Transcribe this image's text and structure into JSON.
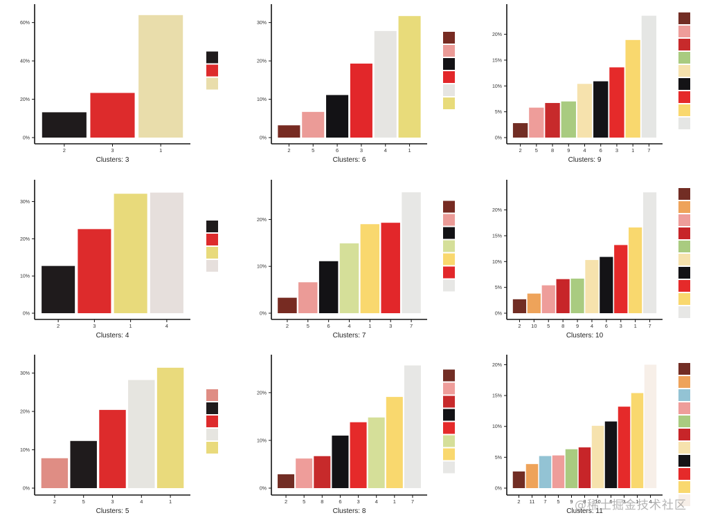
{
  "watermark": "@稀土掘金技术社区",
  "colors": {
    "dark_brown": "#722d24",
    "orange": "#eea35a",
    "light_blue": "#93c3d4",
    "pink": "#ee9d9a",
    "green": "#a9cb80",
    "crimson": "#c72529",
    "wheat": "#f6e2ad",
    "black": "#141316",
    "red": "#e52a2a",
    "yellow": "#f9d86e",
    "light_grey": "#e7e7e5",
    "khaki": "#e9ddab",
    "mustard": "#e9da7c",
    "salmon": "#df8d84",
    "lime_yellow": "#d5df99",
    "warm_grey": "#e6dfdc",
    "offwhite": "#f7efe8"
  },
  "chart_data": [
    {
      "type": "bar",
      "title": "Clusters: 3",
      "categories": [
        "2",
        "3",
        "1"
      ],
      "values": [
        13.2,
        23.3,
        63.9
      ],
      "colors": [
        "#1f1b1c",
        "#dd2b2c",
        "#e9ddab"
      ],
      "yticks": [
        0,
        20,
        40,
        60
      ],
      "ytick_labels": [
        "0%",
        "20%",
        "40%",
        "60%"
      ],
      "ylim": [
        0,
        66
      ],
      "ylabel": "",
      "legend": "right"
    },
    {
      "type": "bar",
      "title": "Clusters: 6",
      "categories": [
        "2",
        "5",
        "6",
        "3",
        "4",
        "1"
      ],
      "values": [
        3.2,
        6.7,
        11.1,
        19.3,
        27.8,
        31.7
      ],
      "colors": [
        "#772b22",
        "#eb9b97",
        "#131215",
        "#e2272a",
        "#e6e5e2",
        "#e8db7a"
      ],
      "yticks": [
        0,
        10,
        20,
        30
      ],
      "ytick_labels": [
        "0%",
        "10%",
        "20%",
        "30%"
      ],
      "ylim": [
        0,
        33
      ],
      "ylabel": "",
      "legend": "right"
    },
    {
      "type": "bar",
      "title": "Clusters: 9",
      "categories": [
        "2",
        "5",
        "8",
        "9",
        "4",
        "6",
        "3",
        "1",
        "7"
      ],
      "values": [
        2.8,
        5.8,
        6.7,
        7.0,
        10.4,
        10.9,
        13.6,
        18.9,
        23.6
      ],
      "colors": [
        "#722d24",
        "#ee9d9a",
        "#c72a2b",
        "#a9cb80",
        "#f6e2ad",
        "#141316",
        "#e52a2a",
        "#f9d86e",
        "#e5e6e4"
      ],
      "yticks": [
        0,
        5,
        10,
        15,
        20
      ],
      "ytick_labels": [
        "0%",
        "5%",
        "10%",
        "15%",
        "20%"
      ],
      "ylim": [
        0,
        24.5
      ],
      "ylabel": "",
      "legend": "right"
    },
    {
      "type": "bar",
      "title": "Clusters: 4",
      "categories": [
        "2",
        "3",
        "1",
        "4"
      ],
      "values": [
        12.7,
        22.6,
        32.1,
        32.4
      ],
      "colors": [
        "#1f1b1c",
        "#dd2b2c",
        "#e8da7b",
        "#e6dfdc"
      ],
      "yticks": [
        0,
        10,
        20,
        30
      ],
      "ytick_labels": [
        "0%",
        "10%",
        "20%",
        "30%"
      ],
      "ylim": [
        0,
        34
      ],
      "ylabel": "",
      "legend": "right"
    },
    {
      "type": "bar",
      "title": "Clusters: 7",
      "categories": [
        "2",
        "5",
        "6",
        "4",
        "1",
        "3",
        "7"
      ],
      "values": [
        3.3,
        6.6,
        11.1,
        14.9,
        19.0,
        19.3,
        25.8
      ],
      "colors": [
        "#772b22",
        "#eb9b97",
        "#131215",
        "#d5df99",
        "#f9d86e",
        "#e2272a",
        "#e7e7e5"
      ],
      "yticks": [
        0,
        10,
        20
      ],
      "ytick_labels": [
        "0%",
        "10%",
        "20%"
      ],
      "ylim": [
        0,
        27
      ],
      "ylabel": "",
      "legend": "right"
    },
    {
      "type": "bar",
      "title": "Clusters: 10",
      "categories": [
        "2",
        "10",
        "5",
        "8",
        "9",
        "4",
        "6",
        "3",
        "1",
        "7"
      ],
      "values": [
        2.7,
        3.8,
        5.4,
        6.6,
        6.7,
        10.3,
        10.9,
        13.2,
        16.6,
        23.4
      ],
      "colors": [
        "#722d24",
        "#eea35a",
        "#ee9d9a",
        "#c72529",
        "#a9cb80",
        "#f6e2ad",
        "#141316",
        "#e52a2a",
        "#f9d86e",
        "#e7e7e5"
      ],
      "yticks": [
        0,
        5,
        10,
        15,
        20
      ],
      "ytick_labels": [
        "0%",
        "5%",
        "10%",
        "15%",
        "20%"
      ],
      "ylim": [
        0,
        24.5
      ],
      "ylabel": "",
      "legend": "right"
    },
    {
      "type": "bar",
      "title": "Clusters: 5",
      "categories": [
        "2",
        "5",
        "3",
        "4",
        "1"
      ],
      "values": [
        7.8,
        12.3,
        20.4,
        28.2,
        31.4
      ],
      "colors": [
        "#df8d84",
        "#1f1b1c",
        "#dd2b2c",
        "#e6e5e0",
        "#e9da7c"
      ],
      "yticks": [
        0,
        10,
        20,
        30
      ],
      "ytick_labels": [
        "0%",
        "10%",
        "20%",
        "30%"
      ],
      "ylim": [
        0,
        33
      ],
      "ylabel": "",
      "legend": "right"
    },
    {
      "type": "bar",
      "title": "Clusters: 8",
      "categories": [
        "2",
        "5",
        "8",
        "6",
        "3",
        "4",
        "1",
        "7"
      ],
      "values": [
        2.9,
        6.2,
        6.7,
        11.0,
        13.8,
        14.8,
        19.1,
        25.7
      ],
      "colors": [
        "#722d24",
        "#ee9d9a",
        "#c72a2b",
        "#131215",
        "#e52a2a",
        "#d5df99",
        "#f9d86e",
        "#e7e7e5"
      ],
      "yticks": [
        0,
        10,
        20
      ],
      "ytick_labels": [
        "0%",
        "10%",
        "20%"
      ],
      "ylim": [
        0,
        26.5
      ],
      "ylabel": "",
      "legend": "right"
    },
    {
      "type": "bar",
      "title": "Clusters: 11",
      "categories": [
        "2",
        "11",
        "7",
        "5",
        "9",
        "8",
        "10",
        "6",
        "3",
        "1",
        "4"
      ],
      "values": [
        2.7,
        3.9,
        5.2,
        5.3,
        6.3,
        6.6,
        10.1,
        10.8,
        13.2,
        15.4,
        20.0
      ],
      "colors": [
        "#722d24",
        "#eea35a",
        "#93c3d4",
        "#ee9d9a",
        "#a9cb80",
        "#c72529",
        "#f6e2ad",
        "#141316",
        "#e52a2a",
        "#f9d86e",
        "#f7efe8"
      ],
      "yticks": [
        0,
        5,
        10,
        15,
        20
      ],
      "ytick_labels": [
        "0%",
        "5%",
        "10%",
        "15%",
        "20%"
      ],
      "ylim": [
        0,
        20.5
      ],
      "ylabel": "",
      "legend": "right"
    }
  ]
}
